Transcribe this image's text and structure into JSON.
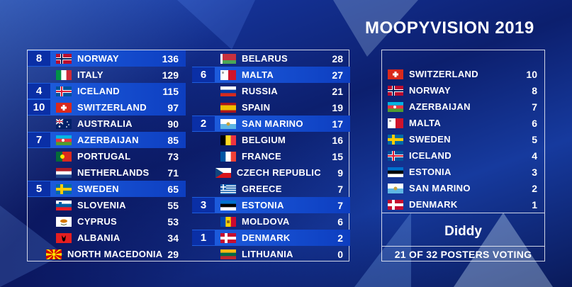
{
  "title": "MOOPYVISION 2019",
  "scoreboard": {
    "left": [
      {
        "pts": "8",
        "name": "NORWAY",
        "total": "136",
        "flag": "norway",
        "hl": true
      },
      {
        "pts": "",
        "name": "ITALY",
        "total": "129",
        "flag": "italy",
        "hl": false
      },
      {
        "pts": "4",
        "name": "ICELAND",
        "total": "115",
        "flag": "iceland",
        "hl": true
      },
      {
        "pts": "10",
        "name": "SWITZERLAND",
        "total": "97",
        "flag": "switzerland",
        "hl": true
      },
      {
        "pts": "",
        "name": "AUSTRALIA",
        "total": "90",
        "flag": "australia",
        "hl": false
      },
      {
        "pts": "7",
        "name": "AZERBAIJAN",
        "total": "85",
        "flag": "azerbaijan",
        "hl": true
      },
      {
        "pts": "",
        "name": "PORTUGAL",
        "total": "73",
        "flag": "portugal",
        "hl": false
      },
      {
        "pts": "",
        "name": "NETHERLANDS",
        "total": "71",
        "flag": "netherlands",
        "hl": false
      },
      {
        "pts": "5",
        "name": "SWEDEN",
        "total": "65",
        "flag": "sweden",
        "hl": true
      },
      {
        "pts": "",
        "name": "SLOVENIA",
        "total": "55",
        "flag": "slovenia",
        "hl": false
      },
      {
        "pts": "",
        "name": "CYPRUS",
        "total": "53",
        "flag": "cyprus",
        "hl": false
      },
      {
        "pts": "",
        "name": "ALBANIA",
        "total": "34",
        "flag": "albania",
        "hl": false
      },
      {
        "pts": "",
        "name": "NORTH MACEDONIA",
        "total": "29",
        "flag": "macedonia",
        "hl": false
      }
    ],
    "right": [
      {
        "pts": "",
        "name": "BELARUS",
        "total": "28",
        "flag": "belarus",
        "hl": false
      },
      {
        "pts": "6",
        "name": "MALTA",
        "total": "27",
        "flag": "malta",
        "hl": true
      },
      {
        "pts": "",
        "name": "RUSSIA",
        "total": "21",
        "flag": "russia",
        "hl": false
      },
      {
        "pts": "",
        "name": "SPAIN",
        "total": "19",
        "flag": "spain",
        "hl": false
      },
      {
        "pts": "2",
        "name": "SAN MARINO",
        "total": "17",
        "flag": "sanmarino",
        "hl": true
      },
      {
        "pts": "",
        "name": "BELGIUM",
        "total": "16",
        "flag": "belgium",
        "hl": false
      },
      {
        "pts": "",
        "name": "FRANCE",
        "total": "15",
        "flag": "france",
        "hl": false
      },
      {
        "pts": "",
        "name": "CZECH REPUBLIC",
        "total": "9",
        "flag": "czech",
        "hl": false
      },
      {
        "pts": "",
        "name": "GREECE",
        "total": "7",
        "flag": "greece",
        "hl": false
      },
      {
        "pts": "3",
        "name": "ESTONIA",
        "total": "7",
        "flag": "estonia",
        "hl": true
      },
      {
        "pts": "",
        "name": "MOLDOVA",
        "total": "6",
        "flag": "moldova",
        "hl": false
      },
      {
        "pts": "1",
        "name": "DENMARK",
        "total": "2",
        "flag": "denmark",
        "hl": true
      },
      {
        "pts": "",
        "name": "LITHUANIA",
        "total": "0",
        "flag": "lithuania",
        "hl": false
      }
    ]
  },
  "jury": {
    "votes": [
      {
        "name": "SWITZERLAND",
        "pts": "10",
        "flag": "switzerland"
      },
      {
        "name": "NORWAY",
        "pts": "8",
        "flag": "norway"
      },
      {
        "name": "AZERBAIJAN",
        "pts": "7",
        "flag": "azerbaijan"
      },
      {
        "name": "MALTA",
        "pts": "6",
        "flag": "malta"
      },
      {
        "name": "SWEDEN",
        "pts": "5",
        "flag": "sweden"
      },
      {
        "name": "ICELAND",
        "pts": "4",
        "flag": "iceland"
      },
      {
        "name": "ESTONIA",
        "pts": "3",
        "flag": "estonia"
      },
      {
        "name": "SAN MARINO",
        "pts": "2",
        "flag": "sanmarino"
      },
      {
        "name": "DENMARK",
        "pts": "1",
        "flag": "denmark"
      }
    ],
    "voter": "Diddy",
    "progress": "21 OF 32 POSTERS VOTING"
  }
}
